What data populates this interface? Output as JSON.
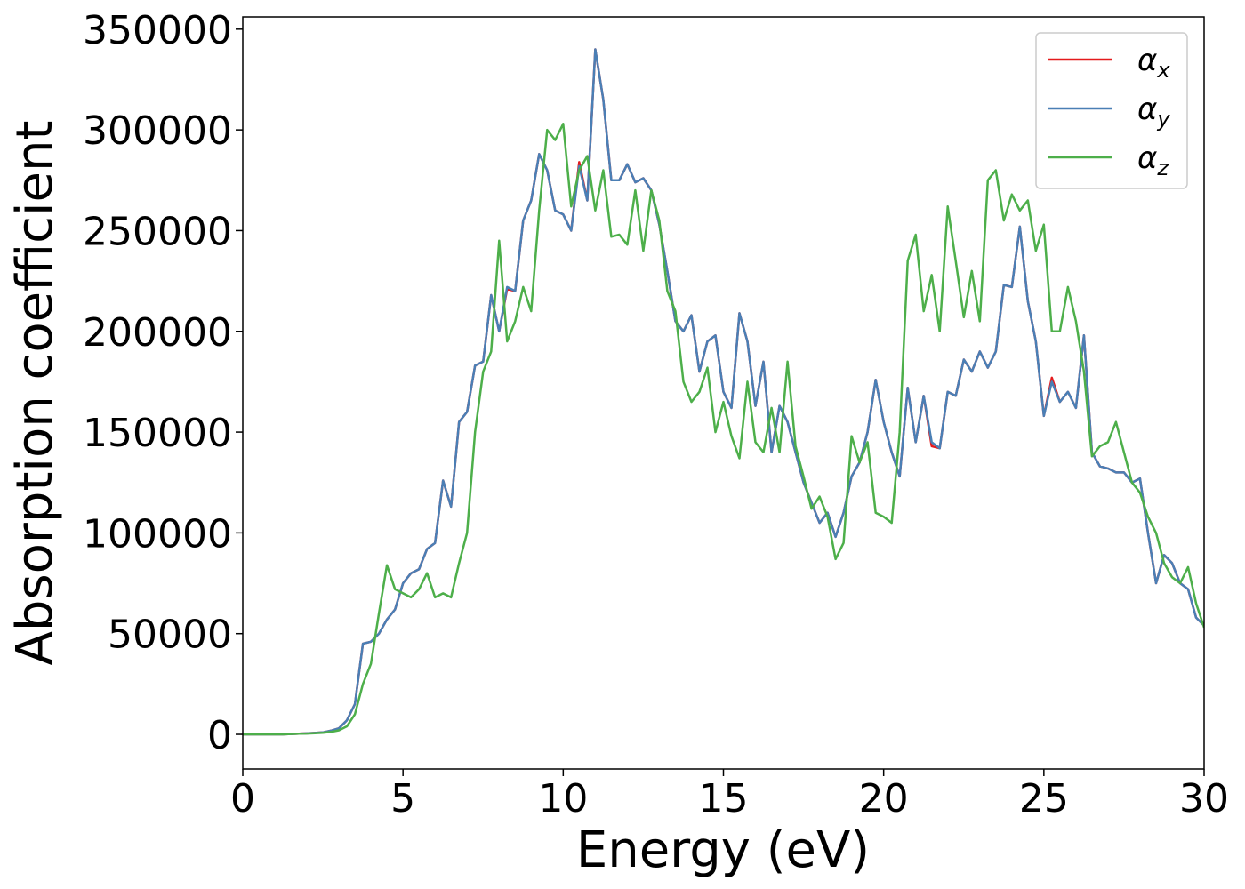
{
  "chart_data": {
    "type": "line",
    "xlabel": "Energy (eV)",
    "ylabel": "Absorption coefficient",
    "xlim": [
      0,
      30
    ],
    "ylim": [
      -17200,
      356100
    ],
    "xticks": [
      0,
      5,
      10,
      15,
      20,
      25,
      30
    ],
    "yticks": [
      0,
      50000,
      100000,
      150000,
      200000,
      250000,
      300000,
      350000
    ],
    "legend": "upper right",
    "grid": false,
    "x": [
      0,
      0.25,
      0.5,
      0.75,
      1,
      1.25,
      1.5,
      1.75,
      2,
      2.25,
      2.5,
      2.75,
      3,
      3.25,
      3.5,
      3.75,
      4,
      4.25,
      4.5,
      4.75,
      5,
      5.25,
      5.5,
      5.75,
      6,
      6.25,
      6.5,
      6.75,
      7,
      7.25,
      7.5,
      7.75,
      8,
      8.25,
      8.5,
      8.75,
      9,
      9.25,
      9.5,
      9.75,
      10,
      10.25,
      10.5,
      10.75,
      11,
      11.25,
      11.5,
      11.75,
      12,
      12.25,
      12.5,
      12.75,
      13,
      13.25,
      13.5,
      13.75,
      14,
      14.25,
      14.5,
      14.75,
      15,
      15.25,
      15.5,
      15.75,
      16,
      16.25,
      16.5,
      16.75,
      17,
      17.25,
      17.5,
      17.75,
      18,
      18.25,
      18.5,
      18.75,
      19,
      19.25,
      19.5,
      19.75,
      20,
      20.25,
      20.5,
      20.75,
      21,
      21.25,
      21.5,
      21.75,
      22,
      22.25,
      22.5,
      22.75,
      23,
      23.25,
      23.5,
      23.75,
      24,
      24.25,
      24.5,
      24.75,
      25,
      25.25,
      25.5,
      25.75,
      26,
      26.25,
      26.5,
      26.75,
      27,
      27.25,
      27.5,
      27.75,
      28,
      28.25,
      28.5,
      28.75,
      29,
      29.25,
      29.5,
      29.75,
      30
    ],
    "series": [
      {
        "name": "αx",
        "color": "#e41a1c",
        "values": [
          0,
          0,
          0,
          0,
          0,
          0,
          200,
          300,
          500,
          700,
          1000,
          1800,
          3000,
          7000,
          15000,
          45000,
          46000,
          50000,
          57000,
          62000,
          75000,
          80000,
          82000,
          92000,
          95000,
          126000,
          113000,
          155000,
          160000,
          183000,
          185000,
          218000,
          200000,
          221000,
          220000,
          255000,
          265000,
          288000,
          280000,
          260000,
          258000,
          250000,
          284000,
          265000,
          340000,
          315000,
          275000,
          275000,
          283000,
          274000,
          276000,
          270000,
          253000,
          230000,
          205000,
          200000,
          208000,
          180000,
          195000,
          198000,
          170000,
          162000,
          209000,
          195000,
          163000,
          185000,
          140000,
          163000,
          155000,
          140000,
          125000,
          115000,
          105000,
          110000,
          98000,
          110000,
          128000,
          135000,
          150000,
          176000,
          155000,
          140000,
          128000,
          172000,
          145000,
          168000,
          143000,
          142000,
          170000,
          168000,
          186000,
          180000,
          190000,
          182000,
          190000,
          223000,
          222000,
          252000,
          215000,
          195000,
          158000,
          177000,
          165000,
          170000,
          162000,
          198000,
          140000,
          133000,
          132000,
          130000,
          130000,
          125000,
          127000,
          100000,
          75000,
          89000,
          85000,
          75000,
          72000,
          58000,
          54000
        ]
      },
      {
        "name": "αy",
        "color": "#4a7fb5",
        "values": [
          0,
          0,
          0,
          0,
          0,
          0,
          200,
          300,
          500,
          700,
          1000,
          1800,
          3000,
          7000,
          15000,
          45000,
          46000,
          50000,
          57000,
          62000,
          75000,
          80000,
          82000,
          92000,
          95000,
          126000,
          113000,
          155000,
          160000,
          183000,
          185000,
          218000,
          200000,
          222000,
          220000,
          255000,
          265000,
          288000,
          280000,
          260000,
          258000,
          250000,
          282000,
          265000,
          340000,
          315000,
          275000,
          275000,
          283000,
          274000,
          276000,
          270000,
          253000,
          230000,
          205000,
          200000,
          208000,
          180000,
          195000,
          198000,
          170000,
          162000,
          209000,
          195000,
          163000,
          185000,
          140000,
          163000,
          155000,
          140000,
          125000,
          115000,
          105000,
          110000,
          98000,
          110000,
          128000,
          135000,
          150000,
          176000,
          155000,
          140000,
          128000,
          172000,
          145000,
          168000,
          145000,
          142000,
          170000,
          168000,
          186000,
          180000,
          190000,
          182000,
          190000,
          223000,
          222000,
          252000,
          215000,
          195000,
          158000,
          175000,
          165000,
          170000,
          162000,
          198000,
          140000,
          133000,
          132000,
          130000,
          130000,
          125000,
          127000,
          100000,
          75000,
          89000,
          85000,
          75000,
          72000,
          58000,
          54000
        ]
      },
      {
        "name": "αz",
        "color": "#4daf4a",
        "values": [
          0,
          0,
          0,
          0,
          0,
          0,
          200,
          300,
          400,
          600,
          800,
          1200,
          2000,
          4000,
          10000,
          25000,
          35000,
          60000,
          84000,
          72000,
          70000,
          68000,
          72000,
          80000,
          68000,
          70000,
          68000,
          85000,
          100000,
          150000,
          180000,
          190000,
          245000,
          195000,
          205000,
          222000,
          210000,
          260000,
          300000,
          295000,
          303000,
          262000,
          280000,
          287000,
          260000,
          280000,
          247000,
          248000,
          243000,
          270000,
          240000,
          270000,
          255000,
          220000,
          210000,
          175000,
          165000,
          170000,
          182000,
          150000,
          165000,
          148000,
          137000,
          175000,
          145000,
          140000,
          162000,
          140000,
          185000,
          143000,
          128000,
          112000,
          118000,
          108000,
          87000,
          95000,
          148000,
          135000,
          145000,
          110000,
          108000,
          105000,
          150000,
          235000,
          248000,
          210000,
          228000,
          200000,
          262000,
          235000,
          207000,
          230000,
          205000,
          275000,
          280000,
          255000,
          268000,
          260000,
          265000,
          240000,
          253000,
          200000,
          200000,
          222000,
          205000,
          180000,
          138000,
          143000,
          145000,
          155000,
          140000,
          125000,
          120000,
          108000,
          100000,
          85000,
          78000,
          75000,
          83000,
          65000,
          53000
        ]
      }
    ]
  }
}
